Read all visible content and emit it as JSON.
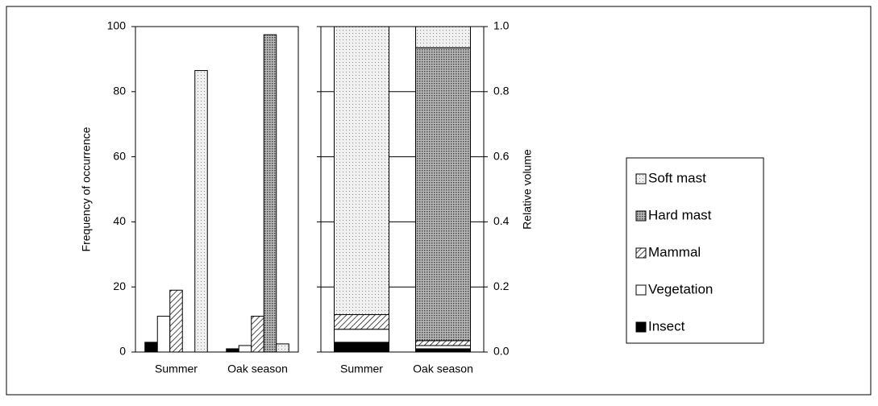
{
  "chart_data": [
    {
      "type": "bar",
      "ylabel": "Frequency of occurrence",
      "categories": [
        "Summer",
        "Oak season"
      ],
      "series": [
        {
          "name": "Insect",
          "color": "#000000",
          "pattern": "solid",
          "values": [
            3,
            1
          ]
        },
        {
          "name": "Vegetation",
          "color": "#ffffff",
          "pattern": "solid",
          "values": [
            11,
            2
          ]
        },
        {
          "name": "Mammal",
          "color": "#ffffff",
          "pattern": "diagonal",
          "values": [
            19,
            11
          ]
        },
        {
          "name": "Hard mast",
          "color": "#9a9a9a",
          "pattern": "dots",
          "values": [
            0,
            97.5
          ]
        },
        {
          "name": "Soft mast",
          "color": "#f0f0f0",
          "pattern": "dots",
          "values": [
            86.5,
            2.5
          ]
        }
      ],
      "ylim": [
        0,
        100
      ],
      "yticks": [
        0,
        20,
        40,
        60,
        80,
        100
      ],
      "grid": false,
      "y_axis_side": "left"
    },
    {
      "type": "stacked_bar",
      "ylabel": "Relative volume",
      "categories": [
        "Summer",
        "Oak season"
      ],
      "series": [
        {
          "color": "#000000",
          "pattern": "solid",
          "values": [
            0.03,
            0.01
          ]
        },
        {
          "color": "#ffffff",
          "pattern": "solid",
          "values": [
            0.04,
            0.01
          ]
        },
        {
          "color": "#ffffff",
          "pattern": "diagonal",
          "values": [
            0.045,
            0.015
          ]
        },
        {
          "color": "#9a9a9a",
          "pattern": "dots",
          "values": [
            0,
            0.9
          ]
        },
        {
          "color": "#f0f0f0",
          "pattern": "dots",
          "values": [
            0.885,
            0.065
          ]
        }
      ],
      "ylim": [
        0,
        1
      ],
      "yticks": [
        {
          "value": 0,
          "label": "0.0"
        },
        0.2,
        0.4,
        0.6,
        0.8,
        {
          "value": 1,
          "label": "1.0"
        }
      ],
      "grid": true,
      "y_axis_side": "right"
    }
  ]
}
